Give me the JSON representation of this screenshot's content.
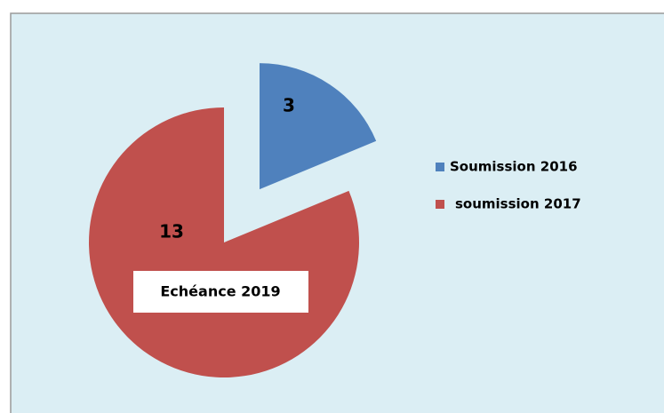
{
  "chart_data": {
    "type": "pie",
    "categories": [
      "Soumission 2016",
      "soumission 2017"
    ],
    "values": [
      3,
      13
    ],
    "colors": [
      "#4f81bd",
      "#c0504d"
    ],
    "annotation": "Echéance 2019",
    "legend": "right"
  }
}
